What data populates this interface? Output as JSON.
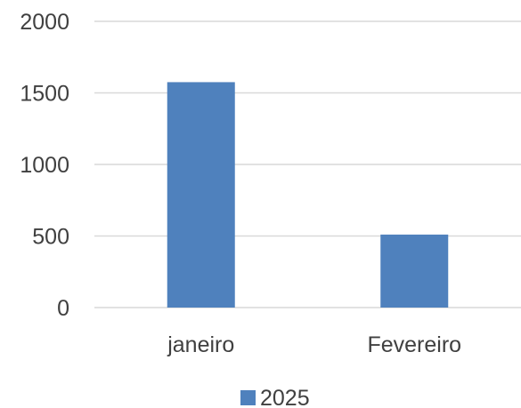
{
  "chart_data": {
    "type": "bar",
    "categories": [
      "janeiro",
      "Fevereiro"
    ],
    "series": [
      {
        "name": "2025",
        "values": [
          1575,
          510
        ],
        "color": "#4f81bd"
      }
    ],
    "yticks": [
      "0",
      "500",
      "1000",
      "1500",
      "2000"
    ],
    "ylim": [
      0,
      2000
    ],
    "grid": true,
    "legend_position": "bottom"
  }
}
